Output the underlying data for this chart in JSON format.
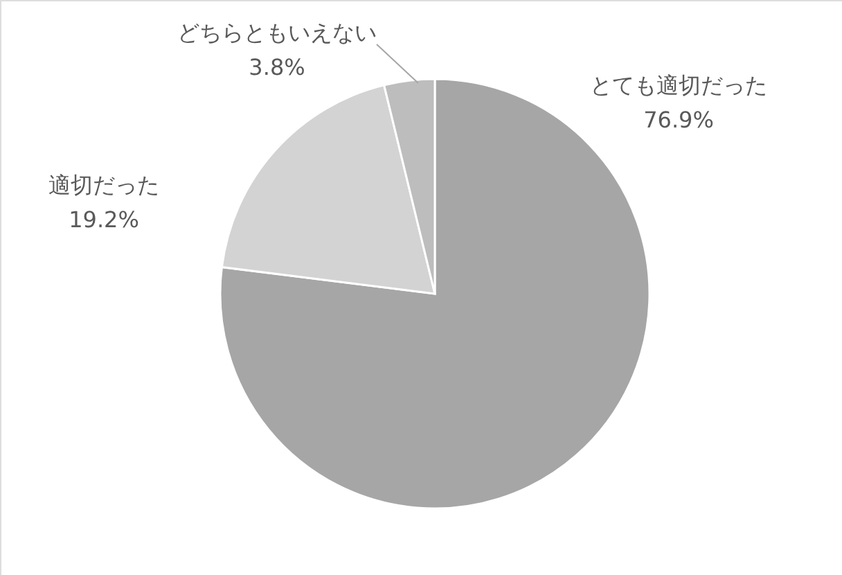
{
  "chart_data": {
    "type": "pie",
    "categories": [
      "とても適切だった",
      "適切だった",
      "どちらともいえない"
    ],
    "values": [
      76.9,
      19.2,
      3.8
    ],
    "colors": [
      "#a6a6a6",
      "#d3d3d3",
      "#bdbdbd"
    ],
    "value_labels": [
      "76.9%",
      "19.2%",
      "3.8%"
    ]
  }
}
